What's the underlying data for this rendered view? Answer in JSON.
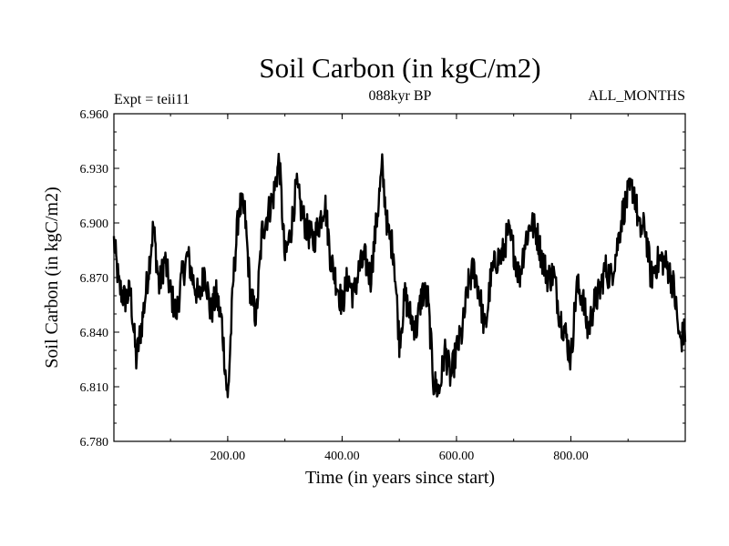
{
  "chart_data": {
    "type": "line",
    "title": "Soil Carbon (in kgC/m2)",
    "subtitle": "088kyr BP",
    "left_label": "Expt = teii11",
    "right_label": "ALL_MONTHS",
    "xlabel": "Time (in years since start)",
    "ylabel": "Soil Carbon (in kgC/m2)",
    "xlim": [
      1,
      1000
    ],
    "ylim": [
      6.78,
      6.96
    ],
    "x_ticks": [
      200,
      400,
      600,
      800
    ],
    "x_tick_labels": [
      "200.00",
      "400.00",
      "600.00",
      "800.00"
    ],
    "y_ticks": [
      6.78,
      6.81,
      6.84,
      6.87,
      6.9,
      6.93,
      6.96
    ],
    "y_tick_labels": [
      "6.780",
      "6.810",
      "6.840",
      "6.870",
      "6.900",
      "6.930",
      "6.960"
    ],
    "series": [
      {
        "name": "Soil Carbon",
        "color": "#000000",
        "x": [
          1,
          10,
          20,
          30,
          40,
          50,
          60,
          70,
          80,
          90,
          100,
          110,
          120,
          130,
          140,
          150,
          160,
          170,
          180,
          190,
          200,
          210,
          220,
          230,
          240,
          250,
          260,
          270,
          280,
          290,
          300,
          310,
          320,
          330,
          340,
          350,
          360,
          370,
          380,
          390,
          400,
          410,
          420,
          430,
          440,
          450,
          460,
          470,
          480,
          490,
          500,
          510,
          520,
          530,
          540,
          550,
          560,
          570,
          580,
          590,
          600,
          610,
          620,
          630,
          640,
          650,
          660,
          670,
          680,
          690,
          700,
          710,
          720,
          730,
          740,
          750,
          760,
          770,
          780,
          790,
          800,
          810,
          820,
          830,
          840,
          850,
          860,
          870,
          880,
          890,
          900,
          910,
          920,
          930,
          940,
          950,
          960,
          970,
          980,
          990,
          1000
        ],
        "values": [
          6.89,
          6.865,
          6.858,
          6.862,
          6.825,
          6.845,
          6.87,
          6.898,
          6.865,
          6.88,
          6.862,
          6.85,
          6.87,
          6.882,
          6.868,
          6.858,
          6.875,
          6.85,
          6.86,
          6.845,
          6.802,
          6.87,
          6.91,
          6.905,
          6.86,
          6.848,
          6.895,
          6.905,
          6.915,
          6.935,
          6.88,
          6.895,
          6.92,
          6.905,
          6.895,
          6.89,
          6.9,
          6.912,
          6.88,
          6.868,
          6.855,
          6.87,
          6.86,
          6.875,
          6.88,
          6.87,
          6.9,
          6.93,
          6.895,
          6.885,
          6.835,
          6.86,
          6.848,
          6.842,
          6.862,
          6.858,
          6.812,
          6.808,
          6.83,
          6.815,
          6.83,
          6.84,
          6.865,
          6.875,
          6.862,
          6.84,
          6.87,
          6.88,
          6.882,
          6.895,
          6.885,
          6.87,
          6.89,
          6.9,
          6.895,
          6.88,
          6.87,
          6.872,
          6.85,
          6.84,
          6.825,
          6.865,
          6.86,
          6.84,
          6.855,
          6.862,
          6.875,
          6.87,
          6.885,
          6.905,
          6.915,
          6.92,
          6.895,
          6.898,
          6.87,
          6.878,
          6.88,
          6.875,
          6.865,
          6.835,
          6.84
        ]
      }
    ]
  }
}
